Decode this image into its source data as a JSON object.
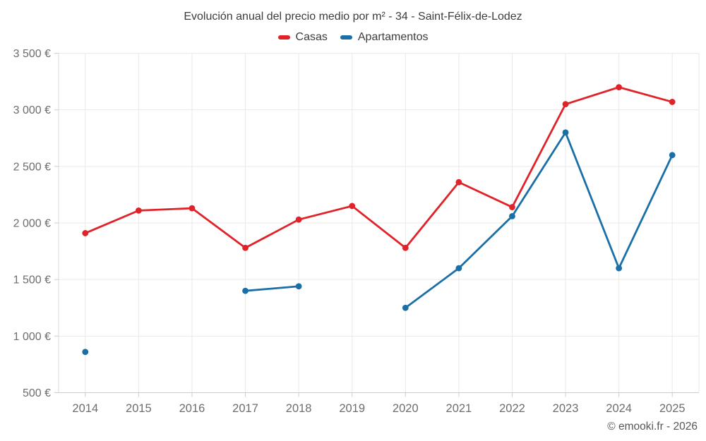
{
  "title": "Evolución anual del precio medio por m² - 34 - Saint-Félix-de-Lodez",
  "footer": "© emooki.fr - 2026",
  "colors": {
    "casas": "#e02229",
    "apartamentos": "#1a6fa6",
    "grid": "#e9e9e9",
    "axis": "#cccccc",
    "title_text": "#3c3c3c",
    "axis_text": "#6d6d6d",
    "footer_text": "#565656"
  },
  "chart_data": {
    "type": "line",
    "title": "Evolución anual del precio medio por m² - 34 - Saint-Félix-de-Lodez",
    "categories": [
      "2014",
      "2015",
      "2016",
      "2017",
      "2018",
      "2019",
      "2020",
      "2021",
      "2022",
      "2023",
      "2024",
      "2025"
    ],
    "series": [
      {
        "name": "Casas",
        "color_key": "casas",
        "values": [
          1910,
          2110,
          2130,
          1780,
          2030,
          2150,
          1780,
          2360,
          2140,
          3050,
          3200,
          3070
        ]
      },
      {
        "name": "Apartamentos",
        "color_key": "apartamentos",
        "values": [
          860,
          null,
          null,
          1400,
          1440,
          null,
          1250,
          1600,
          2060,
          2800,
          1600,
          2600
        ]
      }
    ],
    "xlabel": "",
    "ylabel": "",
    "ylim": [
      500,
      3500
    ],
    "ytick_step": 500,
    "ytick_suffix": " €",
    "grid": true,
    "legend_position": "top"
  }
}
